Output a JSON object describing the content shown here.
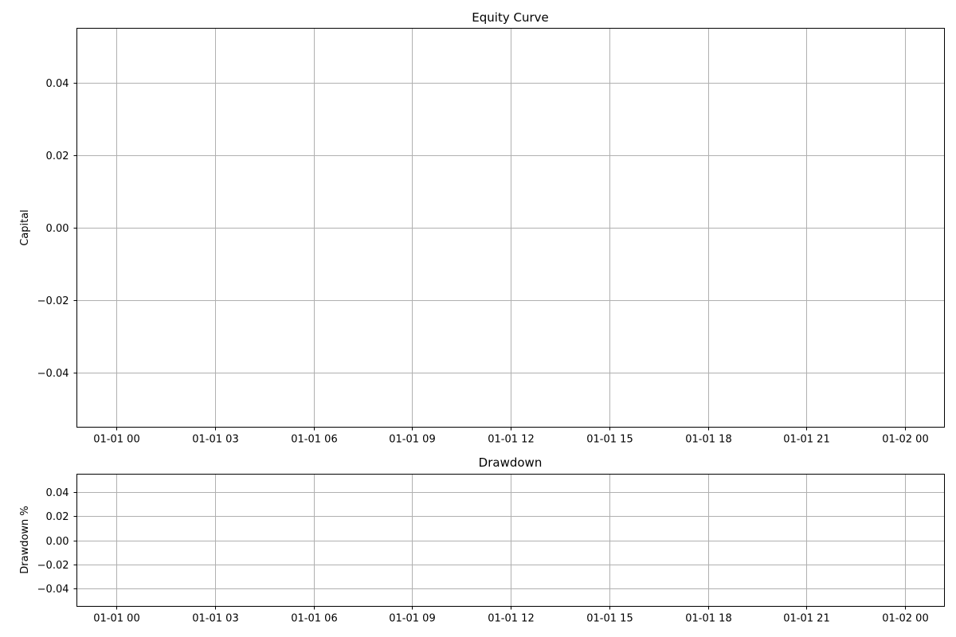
{
  "chart_data": [
    {
      "type": "line",
      "title": "Equity Curve",
      "xlabel": "",
      "ylabel": "Capital",
      "x_ticks": [
        "01-01 00",
        "01-01 03",
        "01-01 06",
        "01-01 09",
        "01-01 12",
        "01-01 15",
        "01-01 18",
        "01-01 21",
        "01-02 00"
      ],
      "y_ticks": [
        "0.04",
        "0.02",
        "0.00",
        "−0.02",
        "−0.04"
      ],
      "x_tick_values": [
        0,
        3,
        6,
        9,
        12,
        15,
        18,
        21,
        24
      ],
      "y_tick_values": [
        0.04,
        0.02,
        0.0,
        -0.02,
        -0.04
      ],
      "xlim": [
        -1.2,
        25.2
      ],
      "ylim": [
        -0.055,
        0.055
      ],
      "grid": true,
      "series": []
    },
    {
      "type": "line",
      "title": "Drawdown",
      "xlabel": "",
      "ylabel": "Drawdown %",
      "x_ticks": [
        "01-01 00",
        "01-01 03",
        "01-01 06",
        "01-01 09",
        "01-01 12",
        "01-01 15",
        "01-01 18",
        "01-01 21",
        "01-02 00"
      ],
      "y_ticks": [
        "0.04",
        "0.02",
        "0.00",
        "−0.02",
        "−0.04"
      ],
      "x_tick_values": [
        0,
        3,
        6,
        9,
        12,
        15,
        18,
        21,
        24
      ],
      "y_tick_values": [
        0.04,
        0.02,
        0.0,
        -0.02,
        -0.04
      ],
      "xlim": [
        -1.2,
        25.2
      ],
      "ylim": [
        -0.055,
        0.055
      ],
      "grid": true,
      "series": []
    }
  ]
}
